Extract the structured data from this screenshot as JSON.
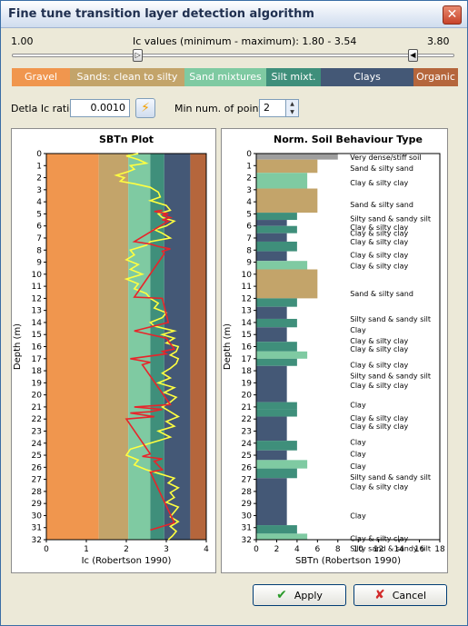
{
  "window": {
    "title": "Fine tune transition layer detection algorithm",
    "close_glyph": "✕"
  },
  "slider": {
    "min_label": "1.00",
    "max_label": "3.80",
    "caption": "Ic values (minimum - maximum): 1.80 - 3.54",
    "min": 1.0,
    "max": 3.8,
    "low": 1.8,
    "high": 3.54,
    "low_glyph": "▷",
    "high_glyph": "◀"
  },
  "classes": [
    {
      "label": "Gravel",
      "color": "#f0964e"
    },
    {
      "label": "Sands: clean to silty",
      "color": "#c3a46a"
    },
    {
      "label": "Sand mixtures",
      "color": "#7fcaa2"
    },
    {
      "label": "Silt mixt.",
      "color": "#3f8f7b"
    },
    {
      "label": "Clays",
      "color": "#445876"
    },
    {
      "label": "Organic",
      "color": "#b5663c"
    }
  ],
  "controls": {
    "delta_label": "Detla Ic ratio",
    "delta_value": "0.0010",
    "lightning_glyph": "⚡",
    "minpts_label": "Min num. of points",
    "minpts_value": "2",
    "spin_up": "▲",
    "spin_down": "▼"
  },
  "buttons": {
    "apply": "Apply",
    "apply_glyph": "✔",
    "cancel": "Cancel",
    "cancel_glyph": "✘"
  },
  "chart_data": [
    {
      "type": "line",
      "title": "SBTn Plot",
      "xlabel": "Ic (Robertson 1990)",
      "ylabel": "Depth (m)",
      "xlim": [
        0,
        4
      ],
      "ylim": [
        32,
        0
      ],
      "x_ticks": [
        0,
        1,
        2,
        3,
        4
      ],
      "y_ticks": [
        0,
        1,
        2,
        3,
        4,
        5,
        6,
        7,
        8,
        9,
        10,
        11,
        12,
        13,
        14,
        15,
        16,
        17,
        18,
        19,
        20,
        21,
        22,
        23,
        24,
        25,
        26,
        27,
        28,
        29,
        30,
        31,
        32
      ],
      "zones": [
        {
          "from": 0,
          "to": 1.31,
          "color": "#f0964e"
        },
        {
          "from": 1.31,
          "to": 2.05,
          "color": "#c3a46a"
        },
        {
          "from": 2.05,
          "to": 2.6,
          "color": "#7fcaa2"
        },
        {
          "from": 2.6,
          "to": 2.95,
          "color": "#3f8f7b"
        },
        {
          "from": 2.95,
          "to": 3.6,
          "color": "#445876"
        },
        {
          "from": 3.6,
          "to": 4,
          "color": "#b5663c"
        }
      ],
      "series": [
        {
          "color": "#ffff40",
          "x": [
            2.3,
            2.0,
            2.3,
            2.5,
            2.1,
            2.2,
            2.05,
            1.75,
            1.95,
            1.85,
            2.2,
            2.6,
            2.8,
            2.85,
            2.6,
            3.0,
            3.1,
            2.8,
            2.9,
            3.2,
            3.0,
            2.7,
            2.9,
            3.1,
            2.6,
            2.5,
            2.1,
            2.2,
            2.0,
            2.3,
            2.1,
            2.4,
            2.0,
            2.3,
            2.2,
            2.5,
            2.6,
            2.8,
            2.7,
            3.0,
            2.9,
            2.6,
            2.7,
            3.2,
            2.9,
            3.2,
            3.0,
            3.3,
            3.25,
            3.1,
            3.3,
            3.25,
            3.1,
            2.9,
            3.1,
            2.8,
            3.2,
            2.95,
            3.25,
            3.1,
            2.9,
            3.1,
            3.3,
            3.0,
            3.2,
            2.8,
            3.1,
            2.6,
            2.1,
            2.0,
            2.3,
            2.2,
            2.5,
            2.8,
            3.2,
            3.05,
            3.3,
            3.1,
            3.2,
            3.0,
            3.3,
            3.2,
            3.1,
            3.3,
            3.1,
            3.25,
            3.15,
            3.05
          ],
          "y": [
            0,
            0.2,
            0.5,
            0.8,
            1.0,
            1.3,
            1.5,
            1.8,
            2.0,
            2.3,
            2.5,
            2.8,
            3.2,
            3.6,
            3.9,
            4.3,
            4.7,
            5.0,
            5.3,
            5.6,
            6.0,
            6.3,
            6.6,
            7.0,
            7.3,
            7.6,
            8.0,
            8.4,
            8.8,
            9.2,
            9.6,
            10.0,
            10.4,
            10.8,
            11.2,
            11.6,
            12.0,
            12.4,
            12.8,
            13.2,
            13.6,
            14.0,
            14.3,
            14.7,
            15.0,
            15.3,
            15.7,
            16.0,
            16.4,
            16.7,
            17.0,
            17.4,
            17.8,
            18.2,
            18.6,
            19.0,
            19.4,
            19.8,
            20.2,
            20.6,
            21.0,
            21.4,
            21.8,
            22.2,
            22.6,
            23.0,
            23.5,
            24.0,
            24.5,
            25.0,
            25.4,
            25.8,
            26.2,
            26.5,
            26.9,
            27.3,
            27.7,
            28.1,
            28.5,
            28.9,
            29.3,
            29.7,
            30.1,
            30.5,
            30.9,
            31.3,
            31.7,
            32.0
          ]
        },
        {
          "color": "#e8242a",
          "x": [
            2.9,
            2.7,
            3.05,
            2.9,
            3.1,
            2.9,
            3.05,
            2.2,
            2.6,
            2.8,
            3.1,
            2.9,
            2.95,
            2.2,
            2.9,
            3.05,
            2.2,
            2.6,
            3.0,
            3.2,
            2.9,
            3.0,
            2.1,
            2.6,
            2.4,
            3.1,
            2.2,
            2.9,
            2.6,
            2.1,
            2.7,
            2.0,
            2.6,
            2.4,
            2.9,
            2.7,
            2.9,
            2.6,
            3.2,
            2.9,
            2.6
          ],
          "y": [
            4.7,
            4.8,
            5.0,
            5.1,
            5.3,
            5.5,
            5.6,
            7.3,
            7.5,
            7.7,
            7.9,
            8.1,
            8.3,
            11.9,
            12.0,
            14.0,
            14.7,
            15.0,
            15.3,
            16.2,
            16.4,
            16.6,
            17.0,
            17.3,
            17.5,
            20.8,
            21.0,
            21.2,
            21.4,
            21.5,
            21.8,
            22.0,
            24.9,
            25.1,
            25.3,
            25.5,
            26.2,
            26.4,
            30.6,
            30.9,
            31.2
          ]
        }
      ]
    },
    {
      "type": "bar",
      "title": "Norm. Soil Behaviour Type",
      "xlabel": "SBTn (Robertson 1990)",
      "ylabel": "Depth (m)",
      "xlim": [
        0,
        18
      ],
      "ylim": [
        32,
        0
      ],
      "x_ticks": [
        0,
        2,
        4,
        6,
        8,
        10,
        12,
        14,
        16,
        18
      ],
      "y_ticks": [
        0,
        1,
        2,
        3,
        4,
        5,
        6,
        7,
        8,
        9,
        10,
        11,
        12,
        13,
        14,
        15,
        16,
        17,
        18,
        19,
        20,
        21,
        22,
        23,
        24,
        25,
        26,
        27,
        28,
        29,
        30,
        31,
        32
      ],
      "layers": [
        {
          "top": 0.0,
          "bottom": 0.5,
          "sbt": 8,
          "label": "Very dense/stiff soil"
        },
        {
          "top": 0.5,
          "bottom": 1.6,
          "sbt": 6,
          "label": "Sand & silty sand"
        },
        {
          "top": 1.6,
          "bottom": 2.9,
          "sbt": 5,
          "label": "Clay & silty clay"
        },
        {
          "top": 2.9,
          "bottom": 4.9,
          "sbt": 6,
          "label": "Sand & silty sand"
        },
        {
          "top": 4.9,
          "bottom": 5.5,
          "sbt": 4,
          "label": "Silty sand & sandy silt"
        },
        {
          "top": 5.5,
          "bottom": 6.0,
          "sbt": 3,
          "label": "Clay & silty clay"
        },
        {
          "top": 6.0,
          "bottom": 6.6,
          "sbt": 4,
          "label": "Clay & silty clay"
        },
        {
          "top": 6.6,
          "bottom": 7.3,
          "sbt": 3,
          "label": "Clay & silty clay"
        },
        {
          "top": 7.3,
          "bottom": 8.1,
          "sbt": 4,
          "label": "Clay & silty clay"
        },
        {
          "top": 8.1,
          "bottom": 8.9,
          "sbt": 3,
          "label": "Clay & silty clay"
        },
        {
          "top": 8.9,
          "bottom": 9.6,
          "sbt": 5,
          "label": ""
        },
        {
          "top": 9.6,
          "bottom": 12.0,
          "sbt": 6,
          "label": "Sand & silty sand"
        },
        {
          "top": 12.0,
          "bottom": 12.7,
          "sbt": 4,
          "label": "Silty sand & sandy silt"
        },
        {
          "top": 12.7,
          "bottom": 13.7,
          "sbt": 3,
          "label": "Clay"
        },
        {
          "top": 13.7,
          "bottom": 14.4,
          "sbt": 4,
          "label": "Clay & silty clay"
        },
        {
          "top": 14.4,
          "bottom": 15.6,
          "sbt": 3,
          "label": "Clay & silty clay"
        },
        {
          "top": 15.6,
          "bottom": 16.4,
          "sbt": 4,
          "label": "Clay & silty clay"
        },
        {
          "top": 16.4,
          "bottom": 17.0,
          "sbt": 5,
          "label": "Silty sand & sandy silt"
        },
        {
          "top": 17.0,
          "bottom": 17.6,
          "sbt": 4,
          "label": "Clay & silty clay"
        },
        {
          "top": 17.6,
          "bottom": 20.6,
          "sbt": 3,
          "label": "Clay"
        },
        {
          "top": 20.6,
          "bottom": 21.2,
          "sbt": 4,
          "label": "Clay & silty clay"
        },
        {
          "top": 21.2,
          "bottom": 21.8,
          "sbt": 4,
          "label": "Clay & silty clay"
        },
        {
          "top": 21.8,
          "bottom": 23.8,
          "sbt": 3,
          "label": "Clay"
        },
        {
          "top": 23.8,
          "bottom": 24.6,
          "sbt": 4,
          "label": ""
        },
        {
          "top": 24.6,
          "bottom": 25.4,
          "sbt": 3,
          "label": "Clay"
        },
        {
          "top": 25.4,
          "bottom": 26.1,
          "sbt": 5,
          "label": "Silty sand & sandy silt"
        },
        {
          "top": 26.1,
          "bottom": 26.9,
          "sbt": 4,
          "label": "Clay & silty clay"
        },
        {
          "top": 26.9,
          "bottom": 30.8,
          "sbt": 3,
          "label": "Clay"
        },
        {
          "top": 30.8,
          "bottom": 31.5,
          "sbt": 4,
          "label": "Clay & silty clay"
        },
        {
          "top": 31.5,
          "bottom": 32.0,
          "sbt": 5,
          "label": "Silty sand & sandy silt"
        }
      ],
      "annotations": [
        {
          "depth": 0.3,
          "label": "Very dense/stiff soil"
        },
        {
          "depth": 1.2,
          "label": "Sand & silty sand"
        },
        {
          "depth": 2.4,
          "label": "Clay & silty clay"
        },
        {
          "depth": 4.2,
          "label": "Sand & silty sand"
        },
        {
          "depth": 5.4,
          "label": "Silty sand & sandy silt"
        },
        {
          "depth": 6.1,
          "label": "Clay & silty clay"
        },
        {
          "depth": 6.6,
          "label": "Clay & silty clay"
        },
        {
          "depth": 7.3,
          "label": "Clay & silty clay"
        },
        {
          "depth": 8.4,
          "label": "Clay & silty clay"
        },
        {
          "depth": 9.3,
          "label": "Clay & silty clay"
        },
        {
          "depth": 11.6,
          "label": "Sand & silty sand"
        },
        {
          "depth": 13.7,
          "label": "Silty sand & sandy silt"
        },
        {
          "depth": 14.6,
          "label": "Clay"
        },
        {
          "depth": 15.5,
          "label": "Clay & silty clay"
        },
        {
          "depth": 16.2,
          "label": "Clay & silty clay"
        },
        {
          "depth": 17.5,
          "label": "Clay & silty clay"
        },
        {
          "depth": 18.4,
          "label": "Silty sand & sandy silt"
        },
        {
          "depth": 19.2,
          "label": "Clay & silty clay"
        },
        {
          "depth": 20.8,
          "label": "Clay"
        },
        {
          "depth": 21.9,
          "label": "Clay & silty clay"
        },
        {
          "depth": 22.6,
          "label": "Clay & silty clay"
        },
        {
          "depth": 23.9,
          "label": "Clay"
        },
        {
          "depth": 24.9,
          "label": "Clay"
        },
        {
          "depth": 25.9,
          "label": "Clay"
        },
        {
          "depth": 26.8,
          "label": "Silty sand & sandy silt"
        },
        {
          "depth": 27.6,
          "label": "Clay & silty clay"
        },
        {
          "depth": 30.0,
          "label": "Clay"
        },
        {
          "depth": 31.9,
          "label": "Clay & silty clay"
        },
        {
          "depth": 32.7,
          "label": "Silty sand & sandy silt"
        }
      ]
    }
  ]
}
